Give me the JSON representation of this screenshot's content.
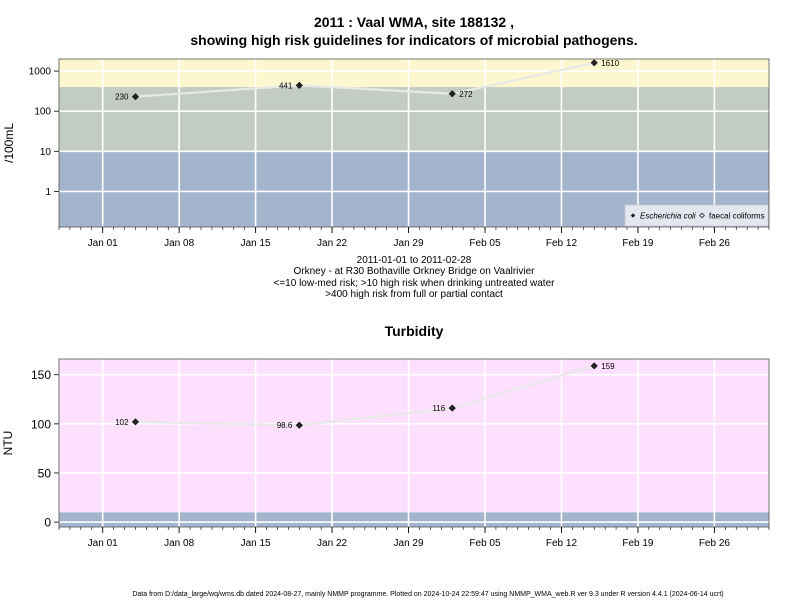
{
  "chart_data": [
    {
      "type": "scatter",
      "title_line1": "2011 : Vaal WMA, site 188132 ,",
      "title_line2": "showing high risk guidelines for indicators of microbial pathogens.",
      "ylabel": "/100mL",
      "y_scale": "log",
      "ylim": [
        0.13,
        2000
      ],
      "y_ticks": [
        1,
        10,
        100,
        1000
      ],
      "y_tick_labels": [
        "1",
        "10",
        "100",
        "1000"
      ],
      "xlim": [
        "2010-12-28",
        "2011-03-03"
      ],
      "x_ticks": [
        "2011-01-01",
        "2011-01-08",
        "2011-01-15",
        "2011-01-22",
        "2011-01-29",
        "2011-02-05",
        "2011-02-12",
        "2011-02-19",
        "2011-02-26"
      ],
      "x_tick_labels": [
        "Jan 01",
        "Jan 08",
        "Jan 15",
        "Jan 22",
        "Jan 29",
        "Feb 05",
        "Feb 12",
        "Feb 19",
        "Feb 26"
      ],
      "bands": [
        {
          "from": 0.13,
          "to": 10,
          "color": "#a3b4cd"
        },
        {
          "from": 10,
          "to": 400,
          "color": "#c3ccc3"
        },
        {
          "from": 400,
          "to": 2000,
          "color": "#fdf7cf"
        }
      ],
      "series": [
        {
          "name": "Escherichia coli",
          "x": [
            "2011-01-04",
            "2011-01-19",
            "2011-02-02",
            "2011-02-15"
          ],
          "y": [
            230,
            441,
            272,
            1610
          ],
          "labels": [
            "230",
            "441",
            "272",
            "1610"
          ],
          "label_side": [
            "left",
            "left",
            "right",
            "right"
          ]
        }
      ],
      "legend": {
        "position": "bottom-right",
        "entries": [
          "Escherichia coli",
          "faecal coliforms"
        ]
      },
      "subtitle_lines": [
        "2011-01-01 to 2011-02-28",
        "Orkney - at R30 Bothaville Orkney Bridge on Vaalrivier",
        "<=10 low-med risk; >10 high risk when drinking untreated water",
        ">400 high risk from full or partial contact"
      ]
    },
    {
      "type": "scatter",
      "title": "Turbidity",
      "ylabel": "NTU",
      "ylim": [
        -5,
        166
      ],
      "y_ticks": [
        0,
        50,
        100,
        150
      ],
      "y_tick_labels": [
        "0",
        "50",
        "100",
        "150"
      ],
      "xlim": [
        "2010-12-28",
        "2011-03-03"
      ],
      "x_ticks": [
        "2011-01-01",
        "2011-01-08",
        "2011-01-15",
        "2011-01-22",
        "2011-01-29",
        "2011-02-05",
        "2011-02-12",
        "2011-02-19",
        "2011-02-26"
      ],
      "x_tick_labels": [
        "Jan 01",
        "Jan 08",
        "Jan 15",
        "Jan 22",
        "Jan 29",
        "Feb 05",
        "Feb 12",
        "Feb 19",
        "Feb 26"
      ],
      "bands": [
        {
          "from": -5,
          "to": 10,
          "color": "#a3b4cd"
        },
        {
          "from": 10,
          "to": 166,
          "color": "#fde0fd"
        }
      ],
      "series": [
        {
          "x": [
            "2011-01-04",
            "2011-01-19",
            "2011-02-02",
            "2011-02-15"
          ],
          "y": [
            102,
            98.6,
            116,
            159
          ],
          "labels": [
            "102",
            "98.6",
            "116",
            "159"
          ],
          "label_side": [
            "left",
            "left",
            "left",
            "right"
          ]
        }
      ]
    }
  ],
  "footer": "Data from D:/data_large/wq/wms.db dated 2024-08-27, mainly NMMP programme. Plotted on 2024-10-24 22:59:47 using NMMP_WMA_web.R ver 9.3 under R version 4.4.1 (2024-06-14 ucrt)"
}
